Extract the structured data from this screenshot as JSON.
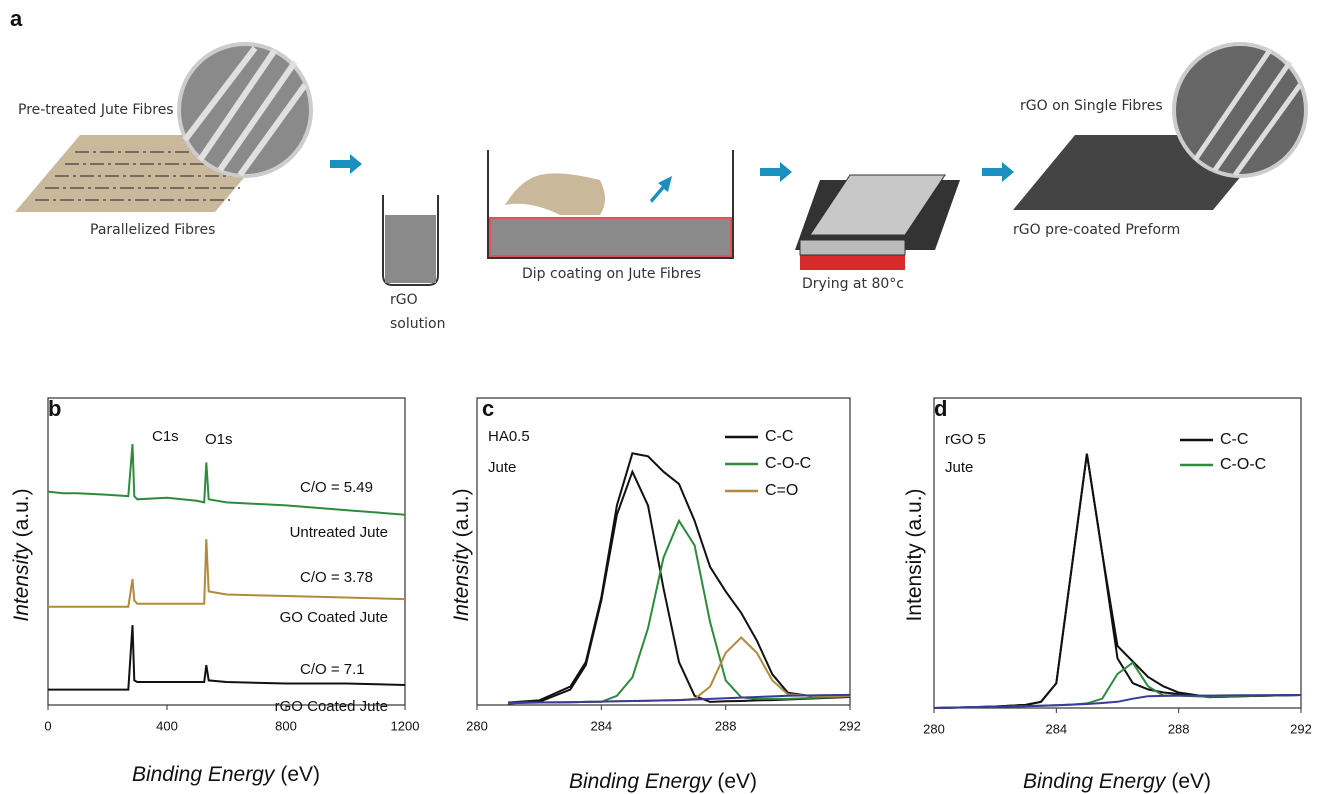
{
  "panel_letters": [
    "a",
    "b",
    "c",
    "d"
  ],
  "schematic": {
    "labels": [
      "Pre-treated Jute Fibres",
      "Parallelized Fibres",
      "rGO",
      "solution",
      "Dip coating on Jute Fibres",
      "Drying at 80°c",
      "rGO on Single Fibres",
      "rGO pre-coated Preform"
    ]
  },
  "chart_data": [
    {
      "type": "line",
      "xlabel": [
        "Binding Energy",
        "(eV)"
      ],
      "ylabel": [
        "Intensity",
        "(a.u.)"
      ],
      "x": [
        0,
        50,
        100,
        200,
        270,
        284,
        290,
        300,
        400,
        500,
        525,
        532,
        540,
        600,
        800,
        1000,
        1200
      ],
      "xlim": [
        0,
        1200
      ],
      "xticks": [
        0,
        400,
        800,
        1200
      ],
      "ylim": [
        0,
        100
      ],
      "series": [
        {
          "color": "#2e8b3e",
          "values": [
            69.5,
            69,
            69,
            68.5,
            68,
            85,
            68,
            67,
            67.5,
            66.5,
            66,
            79,
            67,
            66,
            65,
            63.5,
            62
          ]
        },
        {
          "color": "#b08a3e",
          "values": [
            32,
            32,
            32,
            32,
            32,
            41,
            34,
            33,
            33,
            33,
            33,
            54,
            37,
            36,
            35.5,
            35,
            34.5
          ]
        },
        {
          "color": "#111111",
          "values": [
            5,
            5,
            5,
            5,
            5,
            26,
            8,
            7.5,
            7.5,
            7.5,
            7.5,
            13,
            8,
            7.5,
            7,
            7,
            6.5
          ]
        }
      ],
      "annotations": [
        "C1s",
        "O1s",
        "C/O = 5.49",
        "Untreated Jute",
        "C/O = 3.78",
        "GO Coated Jute",
        "C/O =  7.1",
        "rGO Coated Jute"
      ]
    },
    {
      "type": "line",
      "xlabel": [
        "Binding Energy",
        "(eV)"
      ],
      "ylabel": [
        "Intensity",
        "(a.u.)"
      ],
      "x": [
        281,
        282,
        283,
        283.5,
        284,
        284.5,
        285,
        285.5,
        286,
        286.5,
        287,
        287.5,
        288,
        288.5,
        289,
        289.5,
        290,
        291,
        292
      ],
      "xlim": [
        280,
        292
      ],
      "xticks": [
        280,
        284,
        288,
        292
      ],
      "ylim": [
        0,
        100
      ],
      "series": [
        {
          "color": "#111111",
          "values": [
            0.8,
            1.5,
            6,
            14,
            35,
            65,
            82,
            81,
            76,
            72,
            60,
            45,
            37,
            30,
            21,
            10,
            4,
            2.5,
            3
          ]
        },
        {
          "name": "C-C",
          "color": "#111111",
          "values": [
            0.5,
            1,
            5,
            13,
            34,
            62,
            76,
            65,
            38,
            14,
            3,
            1,
            1.2,
            1.3,
            1.5,
            1.6,
            1.8,
            2.2,
            2.6
          ]
        },
        {
          "name": "C-O-C",
          "color": "#2e8b3e",
          "values": [
            0.7,
            0.8,
            0.9,
            1,
            1,
            3,
            9,
            25,
            48,
            60,
            52,
            27,
            8,
            2.5,
            2,
            2,
            2,
            2.4,
            2.8
          ]
        },
        {
          "name": "C=O",
          "color": "#b08a3e",
          "values": [
            0.7,
            0.8,
            0.9,
            1,
            1.1,
            1.2,
            1.3,
            1.4,
            1.5,
            1.6,
            2,
            6,
            17,
            22,
            17,
            8,
            3.5,
            2.8,
            3
          ]
        },
        {
          "color": "#3a3a9a",
          "values": [
            0.7,
            0.8,
            0.9,
            1,
            1.1,
            1.2,
            1.3,
            1.4,
            1.5,
            1.6,
            1.8,
            2,
            2.2,
            2.4,
            2.6,
            2.8,
            3,
            3.2,
            3.3
          ]
        }
      ],
      "annotations": [
        "HA0.5",
        "Jute"
      ]
    },
    {
      "type": "line",
      "xlabel": [
        "Binding Energy",
        "(eV)"
      ],
      "ylabel": [
        "Intensity (a.u.)"
      ],
      "x": [
        280,
        281,
        282,
        283,
        283.5,
        284,
        284.5,
        285,
        285.5,
        286,
        286.5,
        287,
        287.5,
        288,
        289,
        290,
        292
      ],
      "xlim": [
        280,
        292
      ],
      "xticks": [
        280,
        284,
        288,
        292
      ],
      "ylim": [
        0,
        100
      ],
      "series": [
        {
          "color": "#111111",
          "values": [
            0,
            0.2,
            0.5,
            1,
            2,
            8,
            45,
            82,
            50,
            20,
            15,
            10,
            7,
            5,
            3.5,
            3.8,
            4.2
          ]
        },
        {
          "name": "C-C",
          "color": "#111111",
          "values": [
            0,
            0.2,
            0.5,
            1,
            2,
            8,
            45,
            82,
            50,
            16,
            8,
            6,
            5,
            4.5,
            3.5,
            3.8,
            4.2
          ]
        },
        {
          "name": "C-O-C",
          "color": "#2e8b3e",
          "values": [
            0,
            0.2,
            0.4,
            0.6,
            0.7,
            0.9,
            1.1,
            1.5,
            3,
            11,
            14.6,
            7,
            4,
            4,
            3.6,
            3.9,
            4.2
          ]
        },
        {
          "color": "#3a3a9a",
          "values": [
            0,
            0.2,
            0.4,
            0.6,
            0.7,
            0.9,
            1.1,
            1.3,
            1.6,
            2,
            3,
            3.8,
            3.9,
            4,
            4,
            4.1,
            4.2
          ]
        }
      ],
      "annotations": [
        "rGO 5",
        "Jute"
      ]
    }
  ]
}
